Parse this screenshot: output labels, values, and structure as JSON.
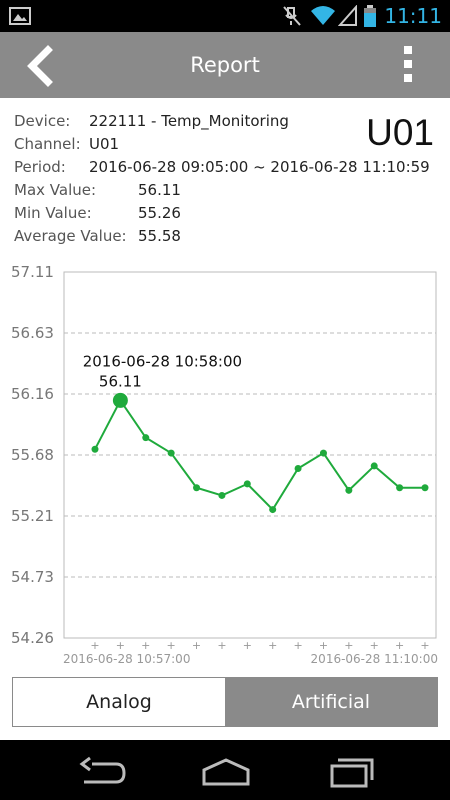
{
  "status_bar": {
    "time": "11:11",
    "icons": [
      "image-notification-icon",
      "mute-icon",
      "wifi-icon",
      "signal-icon",
      "battery-icon"
    ]
  },
  "app_bar": {
    "title": "Report",
    "icons": [
      "back-arrow-icon",
      "overflow-menu-icon"
    ]
  },
  "info": {
    "device_label": "Device:",
    "device_value": "222111 - Temp_Monitoring",
    "channel_label": "Channel:",
    "channel_value": "U01",
    "period_label": "Period:",
    "period_value": "2016-06-28 09:05:00 ~ 2016-06-28 11:10:59",
    "max_label": "Max Value:",
    "max_value": "56.11",
    "min_label": "Min Value:",
    "min_value": "55.26",
    "avg_label": "Average Value:",
    "avg_value": "55.58",
    "channel_big": "U01"
  },
  "chart_data": {
    "type": "line",
    "yticks": [
      "57.11",
      "56.63",
      "56.16",
      "55.68",
      "55.21",
      "54.73",
      "54.26"
    ],
    "ylim": [
      54.26,
      57.11
    ],
    "x_start_label": "2016-06-28 10:57:00",
    "x_end_label": "2016-06-28 11:10:00",
    "series": [
      {
        "values": [
          55.73,
          56.11,
          55.82,
          55.7,
          55.43,
          55.37,
          55.46,
          55.26,
          55.58,
          55.7,
          55.41,
          55.6,
          55.43,
          55.43
        ]
      }
    ],
    "selected_index": 1,
    "tooltip_time": "2016-06-28 10:58:00",
    "tooltip_value": "56.11",
    "grid": "horizontal dashed",
    "line_color": "#1faa3c"
  },
  "segmented": {
    "analog_label": "Analog",
    "artificial_label": "Artificial",
    "selected": "Artificial"
  },
  "nav_bar": {
    "icons": [
      "back-nav-icon",
      "home-nav-icon",
      "recents-nav-icon"
    ]
  },
  "colors": {
    "app_bar": "#8a8a8a",
    "clock": "#33b5e5",
    "line": "#1faa3c"
  }
}
